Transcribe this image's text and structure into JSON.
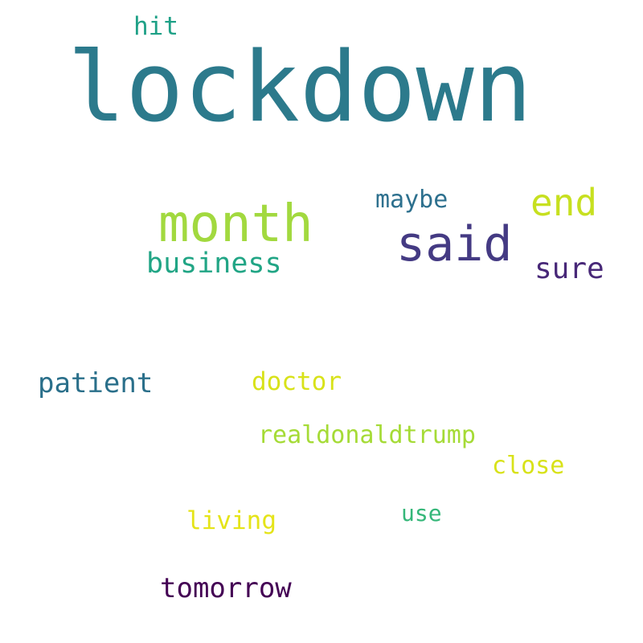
{
  "words": [
    {
      "id": "lockdown",
      "text": "lockdown",
      "color": "#2c7a8c"
    },
    {
      "id": "month",
      "text": "month",
      "color": "#a2d93f"
    },
    {
      "id": "said",
      "text": "said",
      "color": "#443a83"
    },
    {
      "id": "end",
      "text": "end",
      "color": "#c7e020"
    },
    {
      "id": "business",
      "text": "business",
      "color": "#21a585"
    },
    {
      "id": "sure",
      "text": "sure",
      "color": "#482878"
    },
    {
      "id": "maybe",
      "text": "maybe",
      "color": "#2d708e"
    },
    {
      "id": "hit",
      "text": "hit",
      "color": "#1fa187"
    },
    {
      "id": "patient",
      "text": "patient",
      "color": "#2a6f8a"
    },
    {
      "id": "doctor",
      "text": "doctor",
      "color": "#d8e219"
    },
    {
      "id": "realdonaldtrump",
      "text": "realdonaldtrump",
      "color": "#a5db36"
    },
    {
      "id": "close",
      "text": "close",
      "color": "#d8e219"
    },
    {
      "id": "use",
      "text": "use",
      "color": "#35b779"
    },
    {
      "id": "living",
      "text": "living",
      "color": "#e5e419"
    },
    {
      "id": "tomorrow",
      "text": "tomorrow",
      "color": "#440154"
    }
  ]
}
